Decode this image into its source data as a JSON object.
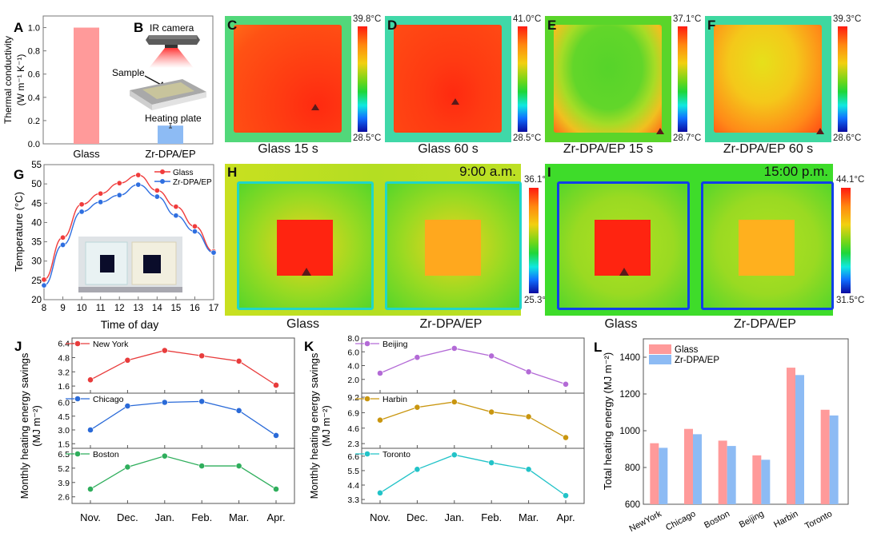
{
  "panels": {
    "A": "A",
    "B": "B",
    "C": "C",
    "D": "D",
    "E": "E",
    "F": "F",
    "G": "G",
    "H": "H",
    "I": "I",
    "J": "J",
    "K": "K",
    "L": "L"
  },
  "schematic": {
    "ir_camera": "IR camera",
    "sample": "Sample",
    "heating_plate": "Heating plate"
  },
  "thermal_images": [
    {
      "id": "C",
      "caption": "Glass 15 s",
      "max": "39.8°C",
      "min": "28.5°C"
    },
    {
      "id": "D",
      "caption": "Glass 60 s",
      "max": "41.0°C",
      "min": "28.5°C"
    },
    {
      "id": "E",
      "caption": "Zr-DPA/EP 15 s",
      "max": "37.1°C",
      "min": "28.7°C"
    },
    {
      "id": "F",
      "caption": "Zr-DPA/EP 60 s",
      "max": "39.3°C",
      "min": "28.6°C"
    }
  ],
  "outdoor_images": [
    {
      "id": "H",
      "time": "9:00 a.m.",
      "max": "36.1°C",
      "min": "25.3°C",
      "left_label": "Glass",
      "right_label": "Zr-DPA/EP"
    },
    {
      "id": "I",
      "time": "15:00 p.m.",
      "max": "44.1°C",
      "min": "31.5°C",
      "left_label": "Glass",
      "right_label": "Zr-DPA/EP"
    }
  ],
  "colors": {
    "glass": "#ff9a9a",
    "zr": "#8dbbf4",
    "line_glass": "#f03c3c",
    "line_zr": "#2f6fe0",
    "newyork": "#e83c3c",
    "chicago": "#2a6ad8",
    "boston": "#2fae5c",
    "beijing": "#b36ad6",
    "harbin": "#c9960f",
    "toronto": "#22c3c8"
  },
  "chart_data": [
    {
      "id": "A",
      "type": "bar",
      "title": "",
      "xlabel": "",
      "ylabel": "Thermal conductivity",
      "ylabel2": "(W m⁻¹ K⁻¹)",
      "categories": [
        "Glass",
        "Zr-DPA/EP"
      ],
      "values": [
        1.0,
        0.157
      ],
      "errors": [
        0,
        0.02
      ],
      "ylim": [
        0,
        1.1
      ],
      "yticks": [
        "0.0",
        "0.2",
        "0.4",
        "0.6",
        "0.8",
        "1.0"
      ]
    },
    {
      "id": "G",
      "type": "line",
      "xlabel": "Time of day",
      "ylabel": "Temperature (°C)",
      "x": [
        8,
        9,
        10,
        11,
        12,
        13,
        14,
        15,
        16,
        17
      ],
      "xticks": [
        "8",
        "9",
        "10",
        "11",
        "12",
        "13",
        "14",
        "15",
        "16",
        "17"
      ],
      "yticks": [
        "20",
        "25",
        "30",
        "35",
        "40",
        "45",
        "50",
        "55"
      ],
      "ylim": [
        20,
        55
      ],
      "legend": "top-right",
      "series": [
        {
          "name": "Glass",
          "values": [
            25.2,
            36.1,
            44.7,
            47.5,
            50.2,
            52.3,
            48.3,
            44.1,
            39.0,
            32.5
          ]
        },
        {
          "name": "Zr-DPA/EP",
          "values": [
            23.7,
            34.2,
            42.8,
            45.3,
            47.1,
            49.8,
            46.7,
            41.8,
            37.7,
            32.2
          ]
        }
      ]
    },
    {
      "id": "J",
      "type": "line",
      "ylabel": "Monthly heating energy savings",
      "ylabel2": "(MJ m⁻²)",
      "categories": [
        "Nov.",
        "Dec.",
        "Jan.",
        "Feb.",
        "Mar.",
        "Apr."
      ],
      "subplots": [
        {
          "name": "New York",
          "values": [
            2.3,
            4.5,
            5.6,
            5.0,
            4.4,
            1.7
          ],
          "yticks": [
            "1.6",
            "3.2",
            "4.8",
            "6.4"
          ],
          "ylim": [
            0.8,
            7.0
          ]
        },
        {
          "name": "Chicago",
          "values": [
            3.0,
            5.6,
            6.0,
            6.1,
            5.1,
            2.4
          ],
          "yticks": [
            "1.5",
            "3.0",
            "4.5",
            "6.0"
          ],
          "ylim": [
            1.0,
            7.0
          ]
        },
        {
          "name": "Boston",
          "values": [
            3.3,
            5.3,
            6.3,
            5.4,
            5.4,
            3.3
          ],
          "yticks": [
            "2.6",
            "3.9",
            "5.2",
            "6.5"
          ],
          "ylim": [
            2.0,
            7.0
          ]
        }
      ]
    },
    {
      "id": "K",
      "type": "line",
      "ylabel": "Monthly heating energy savings",
      "ylabel2": "(MJ m⁻²)",
      "categories": [
        "Nov.",
        "Dec.",
        "Jan.",
        "Feb.",
        "Mar.",
        "Apr."
      ],
      "subplots": [
        {
          "name": "Beijing",
          "values": [
            2.9,
            5.2,
            6.5,
            5.4,
            3.1,
            1.3
          ],
          "yticks": [
            "2.0",
            "4.0",
            "6.0",
            "8.0"
          ],
          "ylim": [
            0.0,
            8.0
          ]
        },
        {
          "name": "Harbin",
          "values": [
            5.8,
            7.7,
            8.5,
            7.0,
            6.3,
            3.2
          ],
          "yticks": [
            "2.3",
            "4.6",
            "6.9",
            "9.2"
          ],
          "ylim": [
            1.6,
            9.8
          ]
        },
        {
          "name": "Toronto",
          "values": [
            3.8,
            5.6,
            6.7,
            6.1,
            5.6,
            3.6
          ],
          "yticks": [
            "3.3",
            "4.4",
            "5.5",
            "6.6"
          ],
          "ylim": [
            3.0,
            7.2
          ]
        }
      ]
    },
    {
      "id": "L",
      "type": "bar",
      "ylabel": "Total heating energy (MJ m⁻²)",
      "categories": [
        "NewYork",
        "Chicago",
        "Boston",
        "Beijing",
        "Harbin",
        "Toronto"
      ],
      "yticks": [
        "600",
        "800",
        "1000",
        "1200",
        "1400"
      ],
      "ylim": [
        600,
        1500
      ],
      "legend": "top-left",
      "series": [
        {
          "name": "Glass",
          "values": [
            932,
            1010,
            946,
            866,
            1343,
            1114
          ]
        },
        {
          "name": "Zr-DPA/EP",
          "values": [
            907,
            981,
            917,
            842,
            1303,
            1083
          ]
        }
      ]
    }
  ]
}
